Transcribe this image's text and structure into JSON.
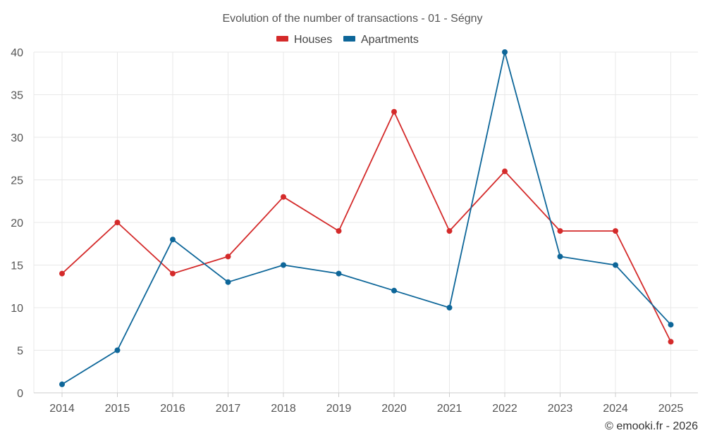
{
  "chart_data": {
    "type": "line",
    "title": "Evolution of the number of transactions - 01 - Ségny",
    "xlabel": "",
    "ylabel": "",
    "categories": [
      "2014",
      "2015",
      "2016",
      "2017",
      "2018",
      "2019",
      "2020",
      "2021",
      "2022",
      "2023",
      "2024",
      "2025"
    ],
    "ylim": [
      0,
      40
    ],
    "yticks": [
      0,
      5,
      10,
      15,
      20,
      25,
      30,
      35,
      40
    ],
    "grid": true,
    "legend_position": "top-center",
    "series": [
      {
        "name": "Houses",
        "color": "#d42a2a",
        "values": [
          14,
          20,
          14,
          16,
          23,
          19,
          33,
          19,
          26,
          19,
          19,
          6
        ]
      },
      {
        "name": "Apartments",
        "color": "#0d6699",
        "values": [
          1,
          5,
          18,
          13,
          15,
          14,
          12,
          10,
          40,
          16,
          15,
          8
        ]
      }
    ],
    "credit": "© emooki.fr - 2026"
  }
}
